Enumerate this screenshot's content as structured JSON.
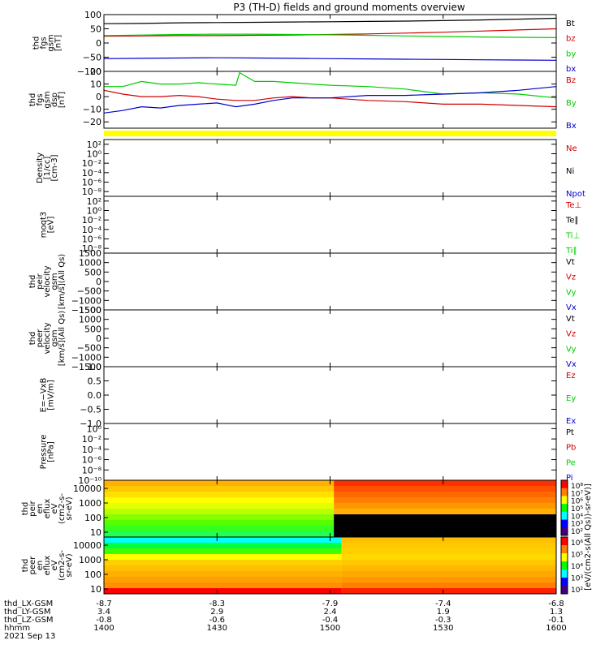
{
  "title": "P3 (TH-D) fields and ground moments overview",
  "footer": {
    "rows": [
      {
        "label": "thd_LX-GSM",
        "values": [
          "-8.7",
          "-8.3",
          "-7.9",
          "-7.4",
          "-6.8"
        ]
      },
      {
        "label": "thd_LY-GSM",
        "values": [
          "3.4",
          "2.9",
          "2.4",
          "1.9",
          "1.3"
        ]
      },
      {
        "label": "thd_LZ-GSM",
        "values": [
          "-0.8",
          "-0.6",
          "-0.4",
          "-0.3",
          "-0.1"
        ]
      },
      {
        "label": "hhmm",
        "values": [
          "1400",
          "1430",
          "1500",
          "1530",
          "1600"
        ]
      }
    ],
    "date": "2021 Sep 13"
  },
  "colorbar": {
    "label": "[eV/(cm2-s(All Qs))-sr-eV)]",
    "ticks_top": [
      "10⁸",
      "10⁷",
      "10⁶",
      "10⁵",
      "10⁴",
      "10³",
      "10²"
    ],
    "ticks_bottom": [
      "10⁶",
      "10⁵",
      "10⁴",
      "10³",
      "10²"
    ]
  },
  "chart_data": [
    {
      "type": "line",
      "ylabel": [
        "thd",
        "fgs",
        "gsm",
        "[nT]"
      ],
      "ylim": [
        -100,
        100
      ],
      "yticks": [
        {
          "v": 100,
          "t": "100"
        },
        {
          "v": 50,
          "t": "50"
        },
        {
          "v": 0,
          "t": "0"
        },
        {
          "v": -50,
          "t": "−50"
        },
        {
          "v": -100,
          "t": "−100"
        }
      ],
      "series": [
        {
          "name": "Bt",
          "color": "#000000",
          "x": [
            0,
            10,
            20,
            30,
            40,
            50,
            60,
            70,
            80,
            90,
            100,
            110,
            120
          ],
          "y": [
            68,
            69,
            71,
            72,
            73,
            74,
            75,
            76,
            77,
            79,
            81,
            84,
            87
          ]
        },
        {
          "name": "bz",
          "color": "#d00000",
          "x": [
            0,
            10,
            20,
            30,
            40,
            50,
            60,
            70,
            80,
            90,
            100,
            110,
            120
          ],
          "y": [
            24,
            25,
            26,
            26,
            27,
            28,
            30,
            32,
            35,
            38,
            42,
            46,
            50
          ]
        },
        {
          "name": "by",
          "color": "#00cc00",
          "x": [
            0,
            10,
            20,
            30,
            40,
            50,
            60,
            70,
            80,
            90,
            100,
            110,
            120
          ],
          "y": [
            26,
            28,
            30,
            31,
            31,
            30,
            29,
            27,
            25,
            23,
            21,
            20,
            19
          ]
        },
        {
          "name": "bx",
          "color": "#0000cc",
          "x": [
            0,
            10,
            20,
            30,
            40,
            50,
            60,
            70,
            80,
            90,
            100,
            110,
            120
          ],
          "y": [
            -55,
            -54,
            -53,
            -52,
            -53,
            -54,
            -55,
            -56,
            -57,
            -58,
            -59,
            -60,
            -61
          ]
        }
      ]
    },
    {
      "type": "line",
      "ylabel": [
        "thd",
        "fgs",
        "gsm",
        "dsp",
        "[nT]"
      ],
      "ylim": [
        -25,
        20
      ],
      "yticks": [
        {
          "v": 20,
          "t": "20"
        },
        {
          "v": 10,
          "t": "10"
        },
        {
          "v": 0,
          "t": "0"
        },
        {
          "v": -10,
          "t": "−10"
        },
        {
          "v": -20,
          "t": "−20"
        }
      ],
      "series": [
        {
          "name": "Bz",
          "color": "#d00000",
          "x": [
            0,
            5,
            10,
            15,
            20,
            25,
            30,
            35,
            40,
            45,
            50,
            55,
            60,
            70,
            80,
            90,
            100,
            110,
            120
          ],
          "y": [
            5,
            2,
            0,
            0,
            1,
            0,
            -2,
            -3,
            -3,
            -1,
            0,
            -1,
            -1,
            -3,
            -4,
            -6,
            -6,
            -7,
            -8
          ]
        },
        {
          "name": "By",
          "color": "#00cc00",
          "x": [
            0,
            5,
            10,
            15,
            20,
            25,
            30,
            35,
            36,
            40,
            45,
            50,
            55,
            60,
            70,
            80,
            90,
            100,
            110,
            120
          ],
          "y": [
            8,
            8,
            12,
            10,
            10,
            11,
            10,
            9,
            19,
            12,
            12,
            11,
            10,
            9,
            8,
            6,
            2,
            3,
            2,
            -1
          ]
        },
        {
          "name": "Bx",
          "color": "#0000cc",
          "x": [
            0,
            5,
            10,
            15,
            20,
            25,
            30,
            35,
            40,
            45,
            50,
            55,
            60,
            70,
            80,
            90,
            100,
            110,
            120
          ],
          "y": [
            -13,
            -11,
            -8,
            -9,
            -7,
            -6,
            -5,
            -8,
            -6,
            -3,
            -1,
            -1,
            -1,
            1,
            1,
            2,
            3,
            5,
            8
          ]
        }
      ]
    },
    {
      "type": "line",
      "ylabel": [
        "Density",
        "[1/cc]",
        "[cm-3]"
      ],
      "ylim": [
        -9,
        3
      ],
      "log": true,
      "yticks": [
        {
          "v": 2,
          "t": "10²"
        },
        {
          "v": 0,
          "t": "10⁰"
        },
        {
          "v": -2,
          "t": "10⁻²"
        },
        {
          "v": -4,
          "t": "10⁻⁴"
        },
        {
          "v": -6,
          "t": "10⁻⁶"
        },
        {
          "v": -8,
          "t": "10⁻⁸"
        }
      ],
      "series": [
        {
          "name": "Ne",
          "color": "#d00000",
          "x": [],
          "y": []
        },
        {
          "name": "Ni",
          "color": "#000000",
          "x": [],
          "y": []
        },
        {
          "name": "Npot",
          "color": "#0000cc",
          "x": [],
          "y": []
        }
      ]
    },
    {
      "type": "line",
      "ylabel": [
        "moqt3",
        "[eV]"
      ],
      "ylim": [
        -9,
        3
      ],
      "log": true,
      "yticks": [
        {
          "v": 2,
          "t": "10²"
        },
        {
          "v": 0,
          "t": "10⁰"
        },
        {
          "v": -2,
          "t": "10⁻²"
        },
        {
          "v": -4,
          "t": "10⁻⁴"
        },
        {
          "v": -6,
          "t": "10⁻⁶"
        },
        {
          "v": -8,
          "t": "10⁻⁸"
        }
      ],
      "series": [
        {
          "name": "Te⊥",
          "color": "#d00000",
          "x": [],
          "y": []
        },
        {
          "name": "Te∥",
          "color": "#000000",
          "x": [],
          "y": []
        },
        {
          "name": "Ti⊥",
          "color": "#00cc00",
          "x": [],
          "y": []
        },
        {
          "name": "Ti∥",
          "color": "#00cc00",
          "x": [],
          "y": []
        }
      ]
    },
    {
      "type": "line",
      "ylabel": [
        "thd",
        "peir",
        "velocity",
        "gsm",
        "[km/s](All Qs)"
      ],
      "ylim": [
        -1500,
        1500
      ],
      "yticks": [
        {
          "v": 1500,
          "t": "1500"
        },
        {
          "v": 1000,
          "t": "1000"
        },
        {
          "v": 500,
          "t": "500"
        },
        {
          "v": 0,
          "t": "0"
        },
        {
          "v": -500,
          "t": "−500"
        },
        {
          "v": -1000,
          "t": "−1000"
        },
        {
          "v": -1500,
          "t": "−1500"
        }
      ],
      "series": [
        {
          "name": "Vt",
          "color": "#000000",
          "x": [],
          "y": []
        },
        {
          "name": "Vz",
          "color": "#d00000",
          "x": [],
          "y": []
        },
        {
          "name": "Vy",
          "color": "#00cc00",
          "x": [],
          "y": []
        },
        {
          "name": "Vx",
          "color": "#0000cc",
          "x": [],
          "y": []
        }
      ]
    },
    {
      "type": "line",
      "ylabel": [
        "thd",
        "peer",
        "velocity",
        "gsm",
        "[km/s](All Qs)"
      ],
      "ylim": [
        -1500,
        1500
      ],
      "yticks": [
        {
          "v": 1500,
          "t": "1500"
        },
        {
          "v": 1000,
          "t": "1000"
        },
        {
          "v": 500,
          "t": "500"
        },
        {
          "v": 0,
          "t": "0"
        },
        {
          "v": -500,
          "t": "−500"
        },
        {
          "v": -1000,
          "t": "−1000"
        },
        {
          "v": -1500,
          "t": "−1500"
        }
      ],
      "series": [
        {
          "name": "Vt",
          "color": "#000000",
          "x": [],
          "y": []
        },
        {
          "name": "Vz",
          "color": "#d00000",
          "x": [],
          "y": []
        },
        {
          "name": "Vy",
          "color": "#00cc00",
          "x": [],
          "y": []
        },
        {
          "name": "Vx",
          "color": "#0000cc",
          "x": [],
          "y": []
        }
      ]
    },
    {
      "type": "line",
      "ylabel": [
        "E=−VxB",
        "[mV/m]"
      ],
      "ylim": [
        -1.0,
        1.0
      ],
      "yticks": [
        {
          "v": 1.0,
          "t": "1.0"
        },
        {
          "v": 0.5,
          "t": "0.5"
        },
        {
          "v": 0,
          "t": "0.0"
        },
        {
          "v": -0.5,
          "t": "−0.5"
        },
        {
          "v": -1.0,
          "t": "−1.0"
        }
      ],
      "series": [
        {
          "name": "Ez",
          "color": "#d00000",
          "x": [],
          "y": []
        },
        {
          "name": "Ey",
          "color": "#00cc00",
          "x": [],
          "y": []
        },
        {
          "name": "Ex",
          "color": "#0000cc",
          "x": [],
          "y": []
        }
      ]
    },
    {
      "type": "line",
      "ylabel": [
        "Pressure",
        "[nPa]"
      ],
      "ylim": [
        -10,
        1
      ],
      "log": true,
      "yticks": [
        {
          "v": 0,
          "t": "10⁰"
        },
        {
          "v": -2,
          "t": "10⁻²"
        },
        {
          "v": -4,
          "t": "10⁻⁴"
        },
        {
          "v": -6,
          "t": "10⁻⁶"
        },
        {
          "v": -8,
          "t": "10⁻⁸"
        },
        {
          "v": -10,
          "t": "10⁻¹⁰"
        }
      ],
      "series": [
        {
          "name": "Pt",
          "color": "#000000",
          "x": [],
          "y": []
        },
        {
          "name": "Pb",
          "color": "#d00000",
          "x": [],
          "y": []
        },
        {
          "name": "Pe",
          "color": "#00cc00",
          "x": [],
          "y": []
        },
        {
          "name": "Pi",
          "color": "#0000cc",
          "x": [],
          "y": []
        }
      ]
    },
    {
      "type": "heatmap",
      "ylabel": [
        "thd",
        "peir",
        "en",
        "eflux",
        "eV",
        "(cm2-s-",
        "sr-eV)"
      ],
      "yticks": [
        "10000",
        "1000",
        "100",
        "10"
      ],
      "split_x": 61,
      "bands_left": [
        "#ffb000",
        "#ffc800",
        "#ffe000",
        "#ffff00",
        "#e6ff00",
        "#b8ff00",
        "#88ff00",
        "#55ff00",
        "#33ff20",
        "#20ff55"
      ],
      "bands_right": [
        "#ff3000",
        "#ff5000",
        "#ff6800",
        "#ff8000",
        "#ff9800",
        "#ffb000",
        "#000000",
        "#000000",
        "#000000",
        "#000000"
      ]
    },
    {
      "type": "heatmap",
      "ylabel": [
        "thd",
        "peer",
        "en",
        "eflux",
        "eV",
        "(cm2-s-",
        "sr-eV)"
      ],
      "yticks": [
        "10000",
        "1000",
        "100",
        "10"
      ],
      "split_x": 63,
      "bands_left": [
        "#00ffff",
        "#00ff40",
        "#40ff00",
        "#ffff00",
        "#ffd000",
        "#ffc000",
        "#ffb000",
        "#ffa000",
        "#ff9000",
        "#ff0000"
      ],
      "bands_right": [
        "#ffc000",
        "#ffc800",
        "#ffd000",
        "#ffd800",
        "#ffc800",
        "#ffb800",
        "#ffa800",
        "#ff9800",
        "#ff8000",
        "#ff2000"
      ]
    }
  ]
}
